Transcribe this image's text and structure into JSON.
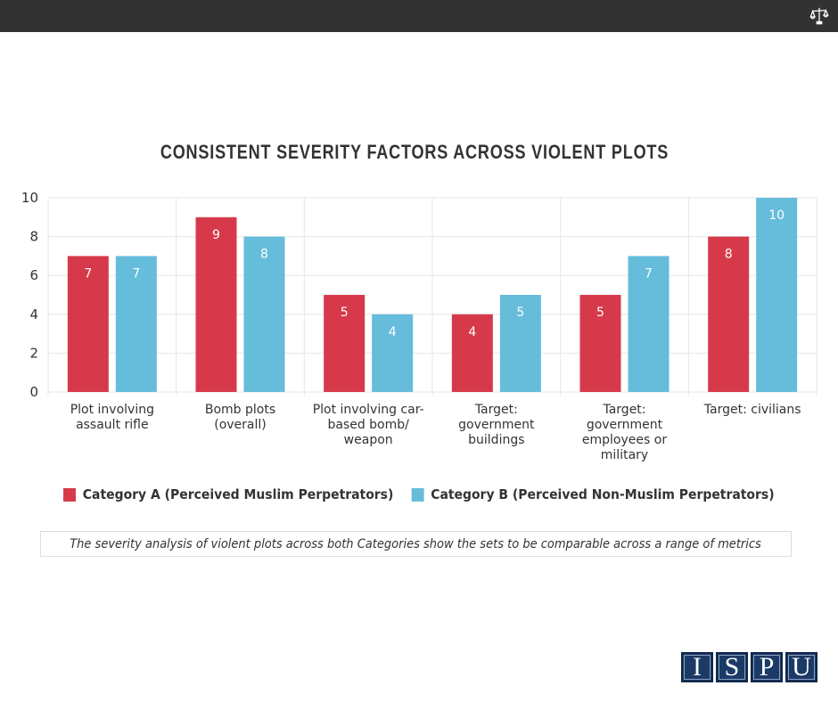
{
  "topbar": {
    "icon": "balance-scale-icon"
  },
  "chart_data": {
    "type": "bar",
    "title": "CONSISTENT SEVERITY FACTORS ACROSS VIOLENT PLOTS",
    "xlabel": "",
    "ylabel": "",
    "ylim": [
      0,
      10
    ],
    "yticks": [
      0,
      2,
      4,
      6,
      8,
      10
    ],
    "grid": true,
    "legend_position": "bottom",
    "categories": [
      "Plot involving assault rifle",
      "Bomb plots (overall)",
      "Plot involving car-based bomb/ weapon",
      "Target: government buildings",
      "Target: government employees or military",
      "Target: civilians"
    ],
    "category_lines": [
      [
        "Plot involving",
        "assault rifle"
      ],
      [
        "Bomb plots",
        "(overall)"
      ],
      [
        "Plot involving car-",
        "based bomb/",
        "weapon"
      ],
      [
        "Target:",
        "government",
        "buildings"
      ],
      [
        "Target:",
        "government",
        "employees or",
        "military"
      ],
      [
        "Target: civilians"
      ]
    ],
    "series": [
      {
        "name": "Category A (Perceived Muslim Perpetrators)",
        "color": "#d63a4a",
        "values": [
          7,
          9,
          5,
          4,
          5,
          8
        ]
      },
      {
        "name": "Category B (Perceived Non-Muslim Perpetrators)",
        "color": "#66bcdb",
        "values": [
          7,
          8,
          4,
          5,
          7,
          10
        ]
      }
    ]
  },
  "legend": {
    "items": [
      {
        "label": "Category A (Perceived Muslim Perpetrators)",
        "color": "#d63a4a"
      },
      {
        "label": "Category B (Perceived Non-Muslim Perpetrators)",
        "color": "#66bcdb"
      }
    ]
  },
  "caption": "The severity analysis of violent plots across both Categories show the sets to be comparable across a range of metrics",
  "logo": {
    "letters": [
      "I",
      "S",
      "P",
      "U"
    ]
  }
}
